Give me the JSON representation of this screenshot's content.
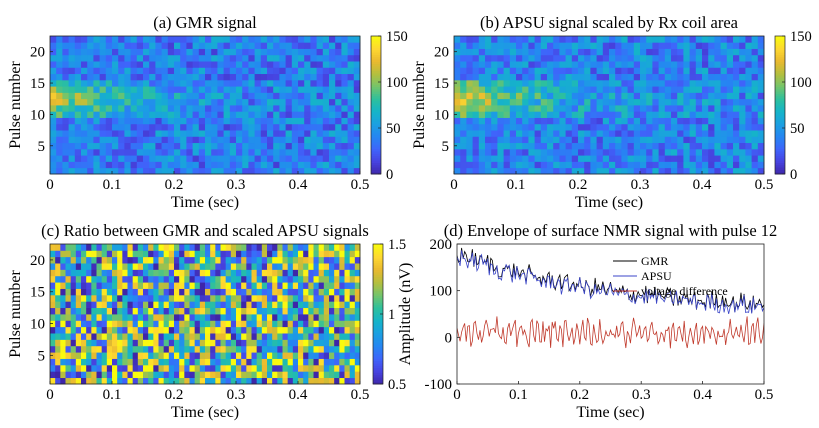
{
  "colormap": [
    "#3e26a8",
    "#4743e0",
    "#3f64fb",
    "#2586f2",
    "#1ba0e1",
    "#15b4c8",
    "#2ec09c",
    "#74c46b",
    "#b5bf3e",
    "#e9b92f",
    "#fed831",
    "#f9fb0e"
  ],
  "chart_data": [
    {
      "type": "heatmap",
      "panel": "a",
      "title": "(a) GMR signal",
      "xlabel": "Time (sec)",
      "ylabel": "Pulse number",
      "xlim": [
        0,
        0.5
      ],
      "ylim": [
        0.5,
        22.5
      ],
      "xticks": [
        "0",
        "0.1",
        "0.2",
        "0.3",
        "0.4",
        "0.5"
      ],
      "yticks": [
        "5",
        "10",
        "15",
        "20"
      ],
      "clim": [
        0,
        150
      ],
      "cticks": [
        "0",
        "50",
        "100",
        "150"
      ],
      "time_bins": 50,
      "pulses": 22,
      "pattern": {
        "background_level": 38,
        "high_rows": [
          10,
          15
        ],
        "peak_level": 125,
        "decay_time_sec": 0.12,
        "random_variation": 28
      }
    },
    {
      "type": "heatmap",
      "panel": "b",
      "title": "(b) APSU signal scaled by Rx coil area",
      "xlabel": "Time (sec)",
      "ylabel": "Pulse number",
      "xlim": [
        0,
        0.5
      ],
      "ylim": [
        0.5,
        22.5
      ],
      "xticks": [
        "0",
        "0.1",
        "0.2",
        "0.3",
        "0.4",
        "0.5"
      ],
      "yticks": [
        "5",
        "10",
        "15",
        "20"
      ],
      "clim": [
        0,
        150
      ],
      "cticks": [
        "0",
        "50",
        "100",
        "150"
      ],
      "time_bins": 50,
      "pulses": 22,
      "pattern": {
        "background_level": 40,
        "high_rows": [
          10,
          15
        ],
        "peak_level": 135,
        "decay_time_sec": 0.14,
        "random_variation": 28
      }
    },
    {
      "type": "heatmap",
      "panel": "c",
      "title": "(c) Ratio between GMR and scaled APSU signals",
      "xlabel": "Time (sec)",
      "ylabel": "Pulse number",
      "xlim": [
        0,
        0.5
      ],
      "ylim": [
        0.5,
        22.5
      ],
      "xticks": [
        "0",
        "0.1",
        "0.2",
        "0.3",
        "0.4",
        "0.5"
      ],
      "yticks": [
        "5",
        "10",
        "15",
        "20"
      ],
      "clim": [
        0.5,
        1.5
      ],
      "cticks": [
        "0.5",
        "1",
        "1.5"
      ],
      "time_bins": 60,
      "pulses": 22,
      "pattern": {
        "center": 1.0,
        "random_variation": 0.55
      }
    },
    {
      "type": "line",
      "panel": "d",
      "title": "(d) Envelope of surface NMR signal with pulse 12",
      "xlabel": "Time (sec)",
      "ylabel": "Amplitude (nV)",
      "xlim": [
        0,
        0.5
      ],
      "ylim": [
        -100,
        200
      ],
      "xticks": [
        "0",
        "0.1",
        "0.2",
        "0.3",
        "0.4",
        "0.5"
      ],
      "yticks": [
        "-100",
        "0",
        "100",
        "200"
      ],
      "legend": "top-right",
      "samples": 200,
      "series": [
        {
          "name": "GMR",
          "color": "#000000",
          "start": 180,
          "end": 55,
          "decay_time_sec": 0.25,
          "noise": 18
        },
        {
          "name": "APSU",
          "color": "#3b46c8",
          "start": 175,
          "end": 50,
          "decay_time_sec": 0.25,
          "noise": 18
        },
        {
          "name": "voltage difference",
          "color": "#c0392b",
          "start": 10,
          "end": 10,
          "decay_time_sec": 1,
          "noise": 28
        }
      ]
    }
  ]
}
